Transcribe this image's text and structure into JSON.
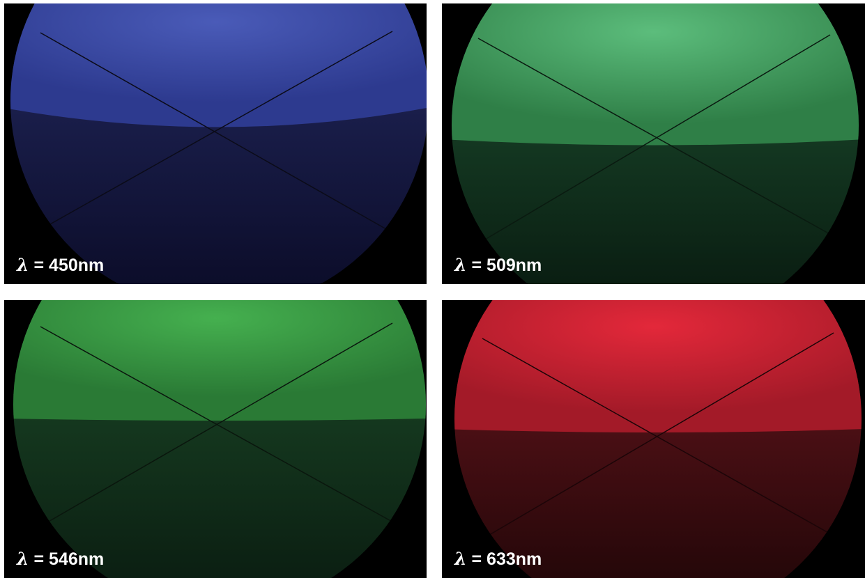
{
  "panels": [
    {
      "symbol": "λ",
      "equals": "=",
      "value": "450",
      "unit": "nm",
      "color": "#4a5bb8"
    },
    {
      "symbol": "λ",
      "equals": "=",
      "value": "509",
      "unit": "nm",
      "color": "#55b877"
    },
    {
      "symbol": "λ",
      "equals": "=",
      "value": "546",
      "unit": "nm",
      "color": "#3fae4a"
    },
    {
      "symbol": "λ",
      "equals": "=",
      "value": "633",
      "unit": "nm",
      "color": "#e3283a"
    }
  ]
}
